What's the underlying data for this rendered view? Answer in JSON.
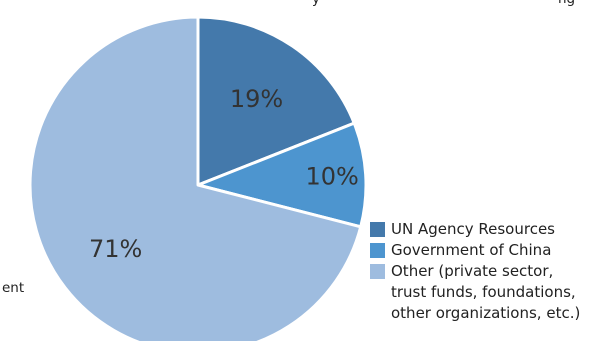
{
  "chart_data": {
    "type": "pie",
    "title": "",
    "slices": [
      {
        "label": "UN Agency Resources",
        "value": 19,
        "display": "19%",
        "color": "#4479ab"
      },
      {
        "label": "Government of China",
        "value": 10,
        "display": "10%",
        "color": "#4d95cf"
      },
      {
        "label": "Other (private sector, trust funds, foundations, other organizations, etc.)",
        "value": 71,
        "display": "71%",
        "color": "#9ebcdf"
      }
    ],
    "legend": {
      "placement": "right",
      "items": [
        {
          "lines": [
            "UN Agency Resources"
          ],
          "color": "#4479ab"
        },
        {
          "lines": [
            "Government of China"
          ],
          "color": "#4d95cf"
        },
        {
          "lines": [
            "Other (private sector,",
            "trust funds, foundations,",
            "other organizations, etc.)"
          ],
          "color": "#9ebcdf"
        }
      ]
    },
    "cut_off_text": [
      {
        "text": "y",
        "position": "top-center"
      },
      {
        "text": "ng",
        "position": "top-right"
      },
      {
        "text": "ent",
        "position": "left-edge"
      }
    ]
  }
}
